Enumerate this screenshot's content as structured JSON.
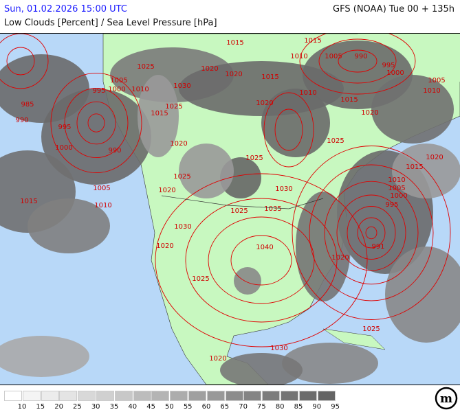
{
  "header": {
    "valid_time": "Sun, 01.02.2026 15:00 UTC",
    "model_run": "GFS (NOAA) Tue 00 + 135h",
    "title": "Low Clouds [Percent] / Sea Level Pressure [hPa]"
  },
  "map": {
    "colors": {
      "ocean": "#b8d8f8",
      "land": "#c8f8c0",
      "isobar": "#e00000",
      "cloud_dark": "#646464",
      "cloud_light": "#a0a0a0"
    },
    "isobar_labels": [
      "1015",
      "1010",
      "1005",
      "990",
      "995",
      "1000",
      "1005",
      "1010",
      "1015",
      "1020",
      "1015",
      "1020",
      "1020",
      "1015",
      "1020",
      "1010",
      "1025",
      "1020",
      "1015",
      "1010",
      "1005",
      "1000",
      "995",
      "991",
      "1020",
      "1030",
      "1035",
      "1040",
      "1025",
      "1025",
      "1030",
      "1025",
      "1020",
      "1020",
      "1025",
      "1015",
      "1030",
      "1025",
      "1005",
      "1000",
      "1010",
      "995",
      "985",
      "990",
      "995",
      "990",
      "1000",
      "1005",
      "1010",
      "1015",
      "1020",
      "1025",
      "1030",
      "1025",
      "1020"
    ]
  },
  "legend": {
    "ticks": [
      "10",
      "15",
      "20",
      "25",
      "30",
      "35",
      "40",
      "45",
      "50",
      "55",
      "60",
      "65",
      "70",
      "75",
      "80",
      "85",
      "90",
      "95"
    ],
    "colors": [
      "#ffffff",
      "#f4f4f4",
      "#ececec",
      "#e4e4e4",
      "#d8d8d8",
      "#d0d0d0",
      "#c8c8c8",
      "#bcbcbc",
      "#b4b4b4",
      "#acacac",
      "#a0a0a0",
      "#989898",
      "#8c8c8c",
      "#848484",
      "#7c7c7c",
      "#747474",
      "#6c6c6c",
      "#646464"
    ],
    "logo_text": "m"
  }
}
